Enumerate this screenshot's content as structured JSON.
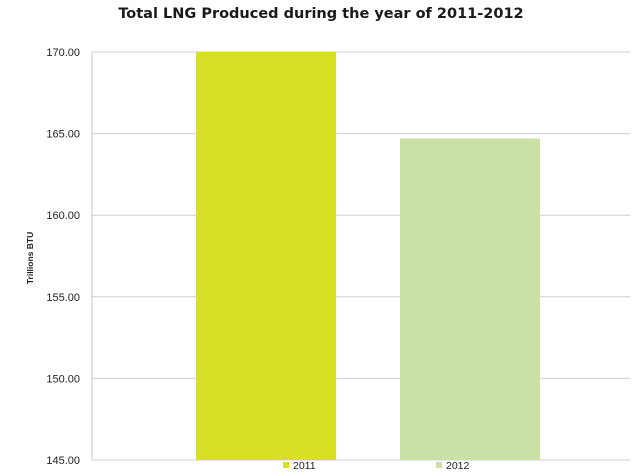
{
  "chart_data": {
    "type": "bar",
    "title": "Total LNG Produced during the year of 2011-2012",
    "ylabel": "Trillions BTU",
    "xlabel": "",
    "categories": [
      "2011",
      "2012"
    ],
    "values": [
      170.0,
      164.7
    ],
    "colors": [
      "#d8df25",
      "#c9e0a6"
    ],
    "ylim": [
      145,
      170
    ],
    "yticks": [
      "145.00",
      "150.00",
      "155.00",
      "160.00",
      "165.00",
      "170.00"
    ],
    "grid": true,
    "legend": {
      "position": "bottom",
      "entries": [
        "2011",
        "2012"
      ]
    }
  }
}
